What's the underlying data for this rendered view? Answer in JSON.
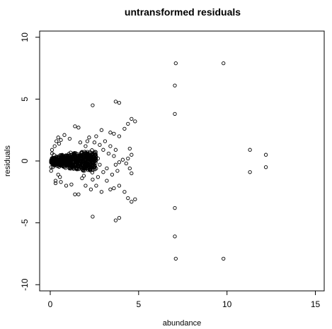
{
  "chart_data": {
    "type": "scatter",
    "title": "untransformed residuals",
    "xlabel": "abundance",
    "ylabel": "residuals",
    "xlim": [
      -0.6,
      15.5
    ],
    "ylim": [
      -10.5,
      10.5
    ],
    "x_ticks": [
      0,
      5,
      10,
      15
    ],
    "y_ticks": [
      -10,
      -5,
      0,
      5,
      10
    ],
    "grid": false,
    "legend": "none",
    "marker": "open-circle",
    "colors": {
      "points": "#000000",
      "axes": "#000000",
      "background": "#ffffff"
    },
    "points": [
      [
        7.1,
        7.9
      ],
      [
        9.8,
        7.9
      ],
      [
        7.05,
        6.1
      ],
      [
        7.05,
        3.8
      ],
      [
        7.05,
        -3.8
      ],
      [
        7.05,
        -6.1
      ],
      [
        7.1,
        -7.9
      ],
      [
        9.8,
        -7.9
      ],
      [
        11.3,
        0.9
      ],
      [
        12.2,
        0.5
      ],
      [
        11.3,
        -0.9
      ],
      [
        12.2,
        -0.5
      ],
      [
        2.4,
        4.5
      ],
      [
        2.4,
        -4.5
      ],
      [
        3.7,
        4.8
      ],
      [
        3.9,
        4.7
      ],
      [
        3.7,
        -4.8
      ],
      [
        3.9,
        -4.6
      ],
      [
        4.6,
        3.4
      ],
      [
        4.8,
        3.2
      ],
      [
        4.4,
        3.0
      ],
      [
        4.6,
        -3.3
      ],
      [
        4.8,
        -3.1
      ],
      [
        4.4,
        -3.0
      ],
      [
        3.6,
        2.2
      ],
      [
        3.4,
        2.3
      ],
      [
        3.9,
        2.0
      ],
      [
        4.2,
        2.6
      ],
      [
        3.6,
        -2.2
      ],
      [
        3.4,
        -2.3
      ],
      [
        3.9,
        -2.0
      ],
      [
        4.2,
        -2.5
      ],
      [
        4.5,
        1.0
      ],
      [
        4.6,
        0.5
      ],
      [
        4.5,
        -0.6
      ],
      [
        4.6,
        -1.0
      ],
      [
        4.4,
        0.2
      ],
      [
        4.3,
        -0.2
      ],
      [
        1.4,
        2.8
      ],
      [
        1.6,
        2.7
      ],
      [
        1.4,
        -2.7
      ],
      [
        1.6,
        -2.7
      ],
      [
        2.6,
        2.0
      ],
      [
        2.9,
        2.5
      ],
      [
        2.6,
        -2.0
      ],
      [
        2.9,
        -2.5
      ],
      [
        0.8,
        2.1
      ],
      [
        0.9,
        -2.0
      ],
      [
        1.1,
        1.8
      ],
      [
        1.2,
        -1.9
      ],
      [
        2.2,
        1.9
      ],
      [
        2.3,
        -2.3
      ],
      [
        2.0,
        -2.0
      ],
      [
        2.1,
        1.6
      ],
      [
        3.1,
        1.6
      ],
      [
        3.2,
        -1.6
      ],
      [
        3.4,
        1.2
      ],
      [
        3.5,
        -1.1
      ],
      [
        3.3,
        0.6
      ],
      [
        3.2,
        -0.6
      ],
      [
        3.0,
        0.9
      ],
      [
        3.0,
        -0.9
      ],
      [
        3.7,
        0.9
      ],
      [
        3.8,
        -0.8
      ],
      [
        3.6,
        0.4
      ],
      [
        3.7,
        -0.3
      ],
      [
        2.8,
        1.3
      ],
      [
        2.7,
        -1.3
      ],
      [
        4.1,
        0.1
      ],
      [
        3.9,
        -0.1
      ],
      [
        2.5,
        1.5
      ],
      [
        2.4,
        -1.5
      ],
      [
        2.0,
        1.2
      ],
      [
        1.9,
        -1.2
      ],
      [
        1.7,
        1.5
      ],
      [
        1.8,
        -1.4
      ],
      [
        2.7,
        0.2
      ],
      [
        2.8,
        -0.3
      ],
      [
        0.35,
        1.6
      ],
      [
        0.3,
        -1.6
      ],
      [
        0.5,
        1.4
      ],
      [
        0.55,
        -1.3
      ],
      [
        0.25,
        1.2
      ],
      [
        0.3,
        -1.8
      ],
      [
        0.6,
        1.7
      ],
      [
        0.6,
        -1.7
      ],
      [
        0.1,
        0.9
      ],
      [
        0.05,
        -0.8
      ],
      [
        0.1,
        0.6
      ],
      [
        0.05,
        -0.5
      ],
      [
        0.2,
        0.5
      ],
      [
        0.15,
        -0.5
      ],
      [
        0.45,
        1.9
      ],
      [
        0.45,
        -1.1
      ]
    ],
    "dense_cluster": {
      "count": 700,
      "x_range": [
        0.05,
        2.6
      ],
      "y_halfwidth_min": 0.15,
      "y_halfwidth_max": 1.0
    }
  }
}
